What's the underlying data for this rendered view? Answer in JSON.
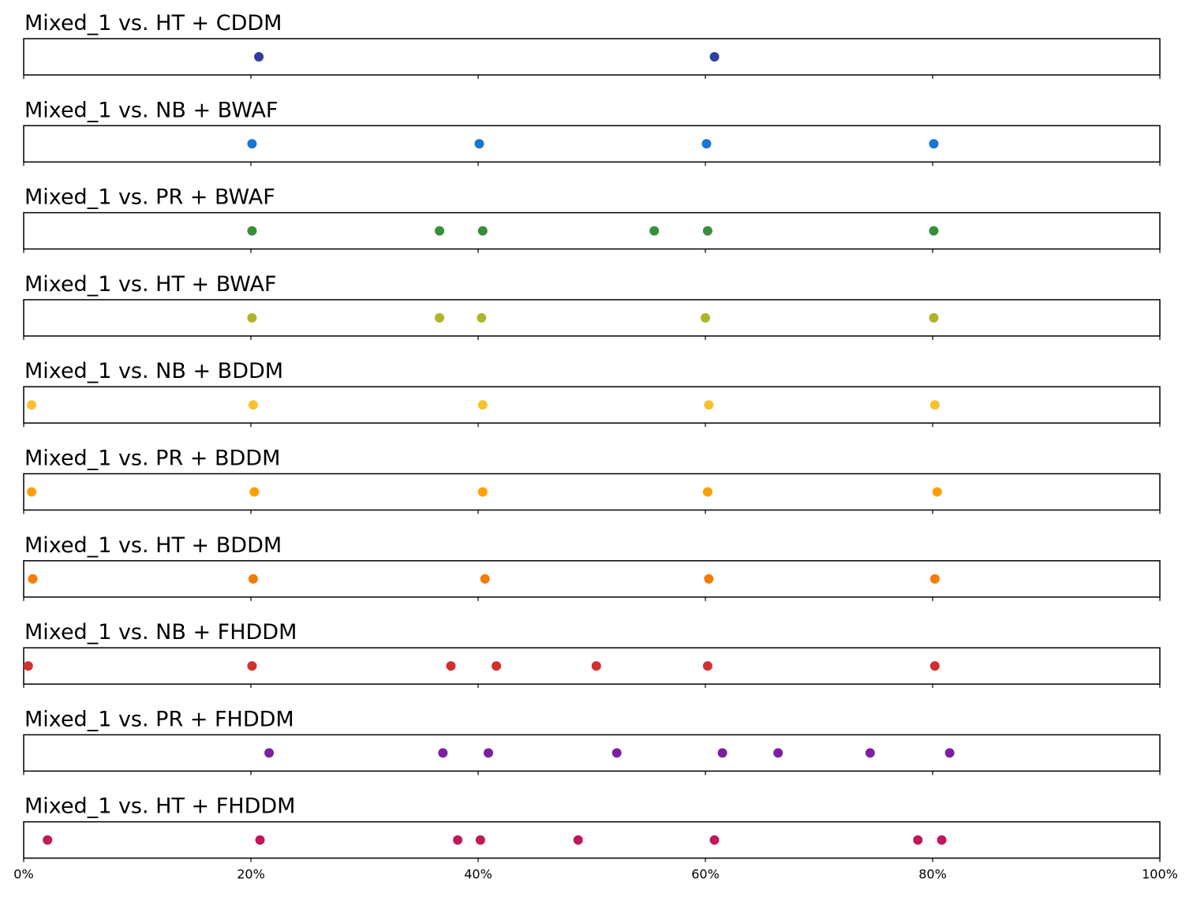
{
  "chart_data": {
    "type": "scatter",
    "xlim": [
      0,
      100
    ],
    "x_tick_labels": [
      "0%",
      "20%",
      "40%",
      "60%",
      "80%",
      "100%"
    ],
    "x_ticks": [
      0,
      20,
      40,
      60,
      80,
      100
    ],
    "grid": false,
    "panels": [
      {
        "title": "Mixed_1 vs. HT + CDDM",
        "color": "#303f9f",
        "x": [
          20.7,
          60.8
        ]
      },
      {
        "title": "Mixed_1 vs. NB + BWAF",
        "color": "#1976d2",
        "x": [
          20.1,
          40.1,
          60.1,
          80.1
        ]
      },
      {
        "title": "Mixed_1 vs. PR + BWAF",
        "color": "#388e3c",
        "x": [
          20.1,
          36.6,
          40.4,
          55.5,
          60.2,
          80.1
        ]
      },
      {
        "title": "Mixed_1 vs. HT + BWAF",
        "color": "#afb42b",
        "x": [
          20.1,
          36.6,
          40.3,
          60.0,
          80.1
        ]
      },
      {
        "title": "Mixed_1 vs. NB + BDDM",
        "color": "#fbc02d",
        "x": [
          0.7,
          20.2,
          40.4,
          60.3,
          80.2
        ]
      },
      {
        "title": "Mixed_1 vs. PR + BDDM",
        "color": "#ffa000",
        "x": [
          0.7,
          20.3,
          40.4,
          60.2,
          80.4
        ]
      },
      {
        "title": "Mixed_1 vs. HT + BDDM",
        "color": "#f57c00",
        "x": [
          0.8,
          20.2,
          40.6,
          60.3,
          80.2
        ]
      },
      {
        "title": "Mixed_1 vs. NB + FHDDM",
        "color": "#d32f2f",
        "x": [
          0.4,
          20.1,
          37.6,
          41.6,
          50.4,
          60.2,
          80.2
        ]
      },
      {
        "title": "Mixed_1 vs. PR + FHDDM",
        "color": "#7b1fa2",
        "x": [
          21.6,
          36.9,
          40.9,
          52.2,
          61.5,
          66.4,
          74.5,
          81.5
        ]
      },
      {
        "title": "Mixed_1 vs. HT + FHDDM",
        "color": "#c2185b",
        "x": [
          2.1,
          20.8,
          38.2,
          40.2,
          48.8,
          60.8,
          78.7,
          80.8
        ]
      }
    ]
  }
}
